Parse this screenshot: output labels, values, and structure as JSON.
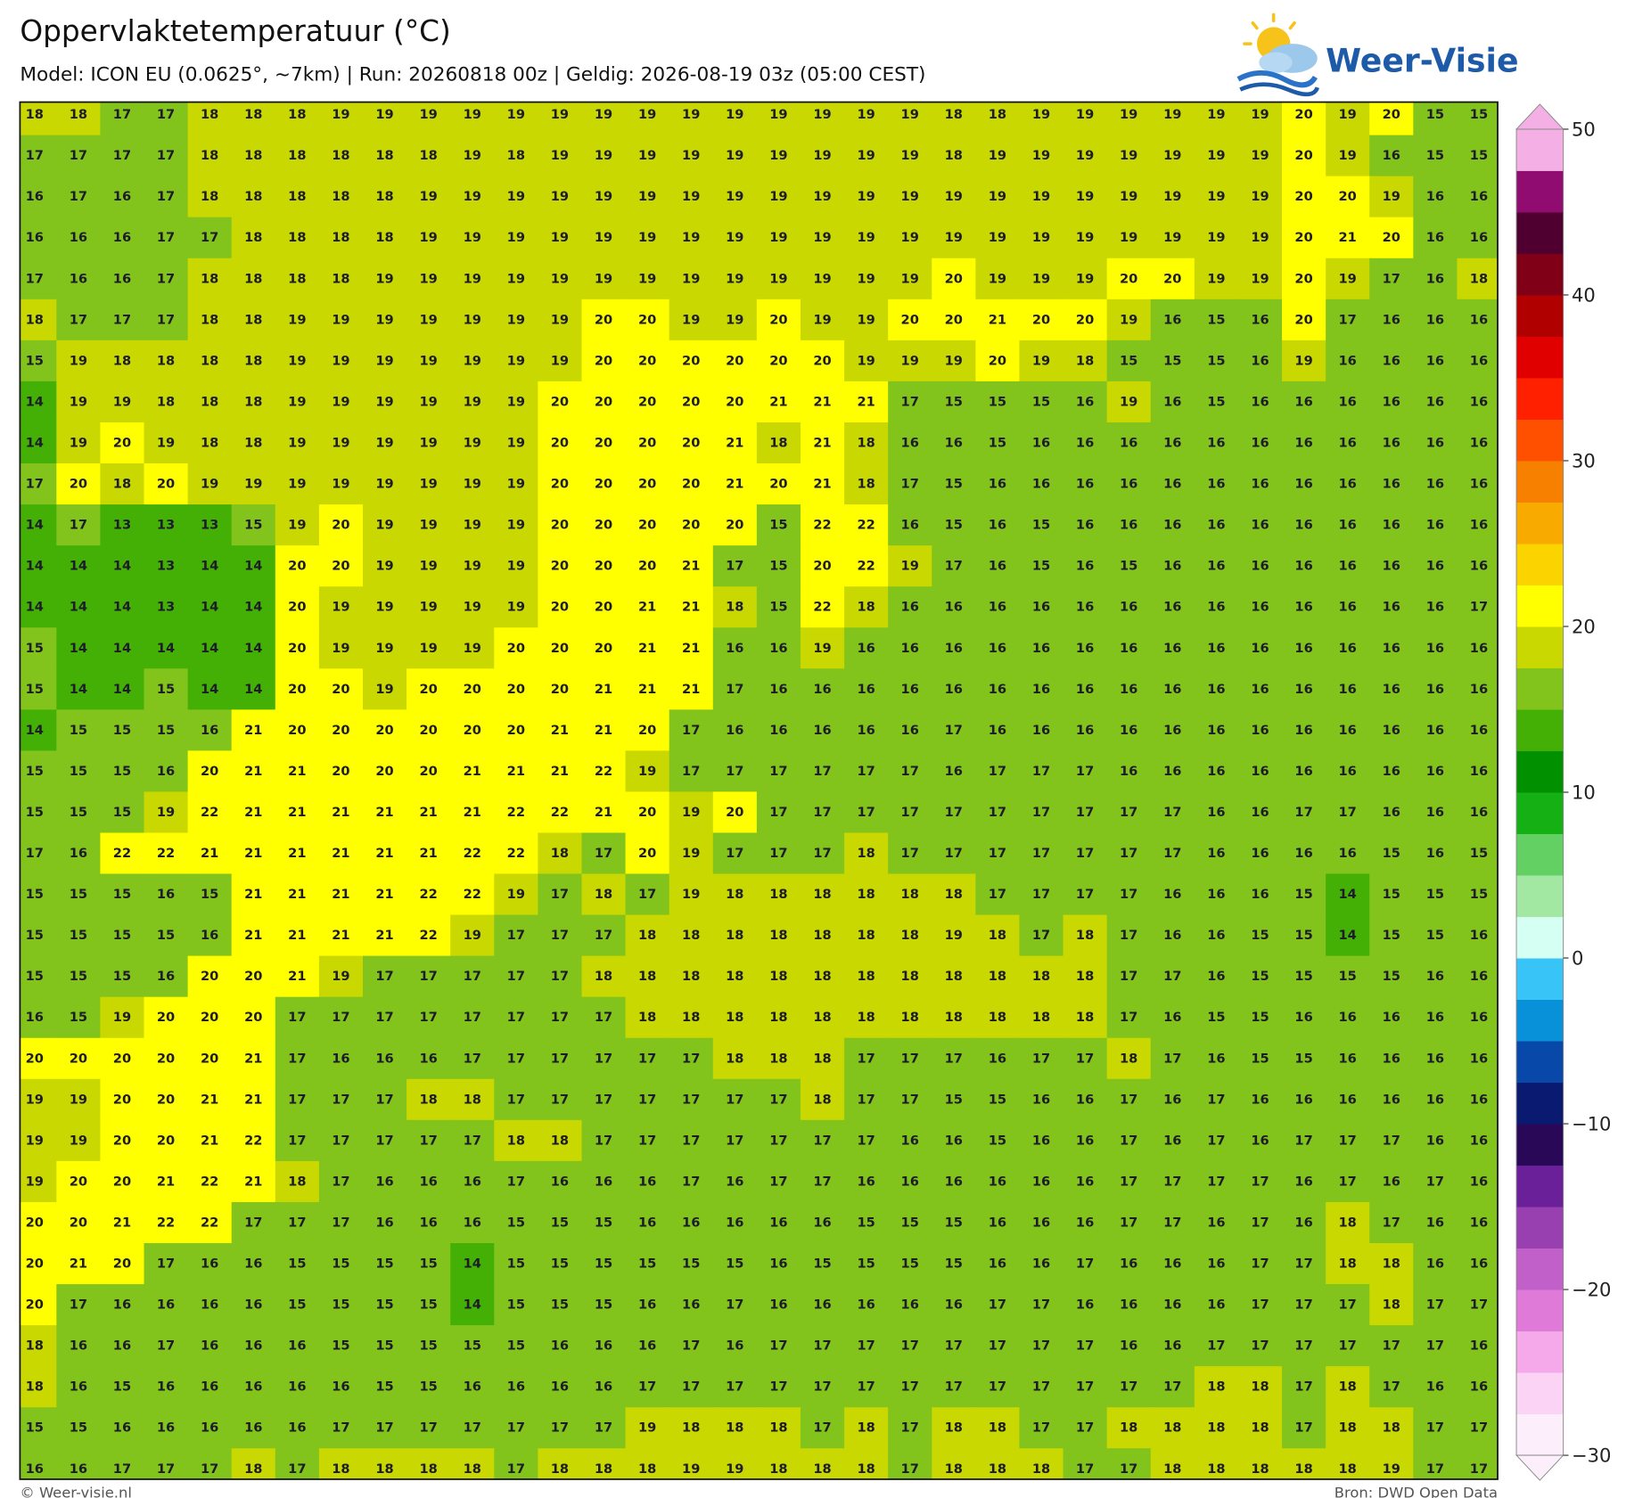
{
  "title": "Oppervlaktetemperatuur (°C)",
  "subtitle": "Model: ICON EU (0.0625°, ~7km)  |  Run: 20260818 00z  |  Geldig: 2026-08-19 03z (05:00 CEST)",
  "logo": "Weer-Visie",
  "footer_left": "© Weer-visie.nl",
  "footer_right": "Bron: DWD Open Data",
  "grid": {
    "values": [
      [
        18,
        18,
        17,
        17,
        18,
        18,
        18,
        19,
        19,
        19,
        19,
        19,
        19,
        19,
        19,
        19,
        19,
        19,
        19,
        19,
        19,
        18,
        18,
        19,
        19,
        19,
        19,
        19,
        19,
        20,
        19,
        20,
        15,
        15
      ],
      [
        17,
        17,
        17,
        17,
        18,
        18,
        18,
        18,
        18,
        18,
        19,
        18,
        19,
        19,
        19,
        19,
        19,
        19,
        19,
        19,
        19,
        18,
        19,
        19,
        19,
        19,
        19,
        19,
        19,
        20,
        19,
        16,
        15,
        15
      ],
      [
        16,
        17,
        16,
        17,
        18,
        18,
        18,
        18,
        18,
        19,
        19,
        19,
        19,
        19,
        19,
        19,
        19,
        19,
        19,
        19,
        19,
        19,
        19,
        19,
        19,
        19,
        19,
        19,
        19,
        20,
        20,
        19,
        16,
        16
      ],
      [
        16,
        16,
        16,
        17,
        17,
        18,
        18,
        18,
        18,
        19,
        19,
        19,
        19,
        19,
        19,
        19,
        19,
        19,
        19,
        19,
        19,
        19,
        19,
        19,
        19,
        19,
        19,
        19,
        19,
        20,
        21,
        20,
        16,
        16
      ],
      [
        17,
        16,
        16,
        17,
        18,
        18,
        18,
        18,
        19,
        19,
        19,
        19,
        19,
        19,
        19,
        19,
        19,
        19,
        19,
        19,
        19,
        20,
        19,
        19,
        19,
        20,
        20,
        19,
        19,
        20,
        19,
        17,
        16,
        18
      ],
      [
        18,
        17,
        17,
        17,
        18,
        18,
        19,
        19,
        19,
        19,
        19,
        19,
        19,
        20,
        20,
        19,
        19,
        20,
        19,
        19,
        20,
        20,
        21,
        20,
        20,
        19,
        16,
        15,
        16,
        20,
        17,
        16,
        16,
        16
      ],
      [
        15,
        19,
        18,
        18,
        18,
        18,
        19,
        19,
        19,
        19,
        19,
        19,
        19,
        20,
        20,
        20,
        20,
        20,
        20,
        19,
        19,
        19,
        20,
        19,
        18,
        15,
        15,
        15,
        16,
        19,
        16,
        16,
        16,
        16
      ],
      [
        14,
        19,
        19,
        18,
        18,
        18,
        19,
        19,
        19,
        19,
        19,
        19,
        20,
        20,
        20,
        20,
        20,
        21,
        21,
        21,
        17,
        15,
        15,
        15,
        16,
        19,
        16,
        15,
        16,
        16,
        16,
        16,
        16,
        16
      ],
      [
        14,
        19,
        20,
        19,
        18,
        18,
        19,
        19,
        19,
        19,
        19,
        19,
        20,
        20,
        20,
        20,
        21,
        18,
        21,
        18,
        16,
        16,
        15,
        16,
        16,
        16,
        16,
        16,
        16,
        16,
        16,
        16,
        16,
        16
      ],
      [
        17,
        20,
        18,
        20,
        19,
        19,
        19,
        19,
        19,
        19,
        19,
        19,
        20,
        20,
        20,
        20,
        21,
        20,
        21,
        18,
        17,
        15,
        16,
        16,
        16,
        16,
        16,
        16,
        16,
        16,
        16,
        16,
        16,
        16
      ],
      [
        14,
        17,
        13,
        13,
        13,
        15,
        19,
        20,
        19,
        19,
        19,
        19,
        20,
        20,
        20,
        20,
        20,
        15,
        22,
        22,
        16,
        15,
        16,
        15,
        16,
        16,
        16,
        16,
        16,
        16,
        16,
        16,
        16,
        16
      ],
      [
        14,
        14,
        14,
        13,
        14,
        14,
        20,
        20,
        19,
        19,
        19,
        19,
        20,
        20,
        20,
        21,
        17,
        15,
        20,
        22,
        19,
        17,
        16,
        15,
        16,
        15,
        16,
        16,
        16,
        16,
        16,
        16,
        16,
        16
      ],
      [
        14,
        14,
        14,
        13,
        14,
        14,
        20,
        19,
        19,
        19,
        19,
        19,
        20,
        20,
        21,
        21,
        18,
        15,
        22,
        18,
        16,
        16,
        16,
        16,
        16,
        16,
        16,
        16,
        16,
        16,
        16,
        16,
        16,
        17
      ],
      [
        15,
        14,
        14,
        14,
        14,
        14,
        20,
        19,
        19,
        19,
        19,
        20,
        20,
        20,
        21,
        21,
        16,
        16,
        19,
        16,
        16,
        16,
        16,
        16,
        16,
        16,
        16,
        16,
        16,
        16,
        16,
        16,
        16,
        16
      ],
      [
        15,
        14,
        14,
        15,
        14,
        14,
        20,
        20,
        19,
        20,
        20,
        20,
        20,
        21,
        21,
        21,
        17,
        16,
        16,
        16,
        16,
        16,
        16,
        16,
        16,
        16,
        16,
        16,
        16,
        16,
        16,
        16,
        16,
        16
      ],
      [
        14,
        15,
        15,
        15,
        16,
        21,
        20,
        20,
        20,
        20,
        20,
        20,
        21,
        21,
        20,
        17,
        16,
        16,
        16,
        16,
        16,
        17,
        16,
        16,
        16,
        16,
        16,
        16,
        16,
        16,
        16,
        16,
        16,
        16
      ],
      [
        15,
        15,
        15,
        16,
        20,
        21,
        21,
        20,
        20,
        20,
        21,
        21,
        21,
        22,
        19,
        17,
        17,
        17,
        17,
        17,
        17,
        16,
        17,
        17,
        17,
        16,
        16,
        16,
        16,
        16,
        16,
        16,
        16,
        16
      ],
      [
        15,
        15,
        15,
        19,
        22,
        21,
        21,
        21,
        21,
        21,
        21,
        22,
        22,
        21,
        20,
        19,
        20,
        17,
        17,
        17,
        17,
        17,
        17,
        17,
        17,
        17,
        17,
        16,
        16,
        17,
        17,
        16,
        16,
        16
      ],
      [
        17,
        16,
        22,
        22,
        21,
        21,
        21,
        21,
        21,
        21,
        22,
        22,
        18,
        17,
        20,
        19,
        17,
        17,
        17,
        18,
        17,
        17,
        17,
        17,
        17,
        17,
        17,
        16,
        16,
        16,
        16,
        15,
        16,
        15
      ],
      [
        15,
        15,
        15,
        16,
        15,
        21,
        21,
        21,
        21,
        22,
        22,
        19,
        17,
        18,
        17,
        19,
        18,
        18,
        18,
        18,
        18,
        18,
        17,
        17,
        17,
        17,
        16,
        16,
        16,
        15,
        14,
        15,
        15,
        15
      ],
      [
        15,
        15,
        15,
        15,
        16,
        21,
        21,
        21,
        21,
        22,
        19,
        17,
        17,
        17,
        18,
        18,
        18,
        18,
        18,
        18,
        18,
        19,
        18,
        17,
        18,
        17,
        16,
        16,
        15,
        15,
        14,
        15,
        15,
        16
      ],
      [
        15,
        15,
        15,
        16,
        20,
        20,
        21,
        19,
        17,
        17,
        17,
        17,
        17,
        18,
        18,
        18,
        18,
        18,
        18,
        18,
        18,
        18,
        18,
        18,
        18,
        17,
        17,
        16,
        15,
        15,
        15,
        15,
        16,
        16
      ],
      [
        16,
        15,
        19,
        20,
        20,
        20,
        17,
        17,
        17,
        17,
        17,
        17,
        17,
        17,
        18,
        18,
        18,
        18,
        18,
        18,
        18,
        18,
        18,
        18,
        18,
        17,
        16,
        15,
        15,
        16,
        16,
        16,
        16,
        16
      ],
      [
        20,
        20,
        20,
        20,
        20,
        21,
        17,
        16,
        16,
        16,
        17,
        17,
        17,
        17,
        17,
        17,
        18,
        18,
        18,
        17,
        17,
        17,
        16,
        17,
        17,
        18,
        17,
        16,
        15,
        15,
        16,
        16,
        16,
        16
      ],
      [
        19,
        19,
        20,
        20,
        21,
        21,
        17,
        17,
        17,
        18,
        18,
        17,
        17,
        17,
        17,
        17,
        17,
        17,
        18,
        17,
        17,
        15,
        15,
        16,
        16,
        17,
        16,
        17,
        16,
        16,
        16,
        16,
        16,
        16
      ],
      [
        19,
        19,
        20,
        20,
        21,
        22,
        17,
        17,
        17,
        17,
        17,
        18,
        18,
        17,
        17,
        17,
        17,
        17,
        17,
        17,
        16,
        16,
        15,
        16,
        16,
        17,
        16,
        17,
        16,
        17,
        17,
        17,
        16,
        16
      ],
      [
        19,
        20,
        20,
        21,
        22,
        21,
        18,
        17,
        16,
        16,
        16,
        17,
        16,
        16,
        16,
        17,
        16,
        17,
        17,
        16,
        16,
        16,
        16,
        16,
        16,
        17,
        17,
        17,
        17,
        16,
        17,
        16,
        17,
        16
      ],
      [
        20,
        20,
        21,
        22,
        22,
        17,
        17,
        17,
        16,
        16,
        16,
        15,
        15,
        15,
        16,
        16,
        16,
        16,
        16,
        15,
        15,
        15,
        16,
        16,
        16,
        17,
        17,
        16,
        17,
        16,
        18,
        17,
        16,
        16
      ],
      [
        20,
        21,
        20,
        17,
        16,
        16,
        15,
        15,
        15,
        15,
        14,
        15,
        15,
        15,
        15,
        15,
        15,
        16,
        15,
        15,
        15,
        15,
        16,
        16,
        17,
        16,
        16,
        16,
        17,
        17,
        18,
        18,
        16,
        16
      ],
      [
        20,
        17,
        16,
        16,
        16,
        16,
        15,
        15,
        15,
        15,
        14,
        15,
        15,
        15,
        16,
        16,
        17,
        16,
        16,
        16,
        16,
        16,
        17,
        17,
        16,
        16,
        16,
        16,
        17,
        17,
        17,
        18,
        17,
        17
      ],
      [
        18,
        16,
        16,
        17,
        16,
        16,
        16,
        15,
        15,
        15,
        15,
        15,
        16,
        16,
        16,
        17,
        16,
        17,
        17,
        17,
        17,
        17,
        17,
        17,
        17,
        16,
        16,
        17,
        17,
        17,
        17,
        17,
        17,
        16
      ],
      [
        18,
        16,
        15,
        16,
        16,
        16,
        16,
        16,
        15,
        15,
        16,
        16,
        16,
        16,
        17,
        17,
        17,
        17,
        17,
        17,
        17,
        17,
        17,
        17,
        17,
        17,
        17,
        18,
        18,
        17,
        18,
        17,
        16,
        16
      ],
      [
        15,
        15,
        16,
        16,
        16,
        16,
        16,
        17,
        17,
        17,
        17,
        17,
        17,
        17,
        19,
        18,
        18,
        18,
        17,
        18,
        17,
        18,
        18,
        17,
        17,
        18,
        18,
        18,
        18,
        17,
        18,
        18,
        17,
        17
      ],
      [
        16,
        16,
        17,
        17,
        17,
        18,
        17,
        18,
        18,
        18,
        18,
        17,
        18,
        18,
        18,
        19,
        19,
        18,
        18,
        18,
        17,
        18,
        18,
        18,
        17,
        17,
        18,
        18,
        18,
        18,
        18,
        19,
        17,
        17
      ]
    ]
  },
  "colorbar": {
    "lim": [
      -30,
      50
    ],
    "ticks": [
      50,
      40,
      30,
      20,
      10,
      0,
      {
        "value": -10,
        "label": "−10"
      },
      {
        "value": -20,
        "label": "−20"
      },
      {
        "value": -30,
        "label": "−30"
      }
    ],
    "colors": [
      "#fdeefb",
      "#fbd3f5",
      "#f5a8ea",
      "#e07ad8",
      "#c060c8",
      "#9840b0",
      "#6a2098",
      "#2a0858",
      "#0a1a70",
      "#0848a8",
      "#0890d8",
      "#38c4f6",
      "#d4fff2",
      "#a2e8a2",
      "#62d062",
      "#14b014",
      "#009000",
      "#44b006",
      "#82c41c",
      "#c8d800",
      "#ffff00",
      "#fbd400",
      "#f8aa00",
      "#f88000",
      "#ff5000",
      "#ff2000",
      "#e00000",
      "#b00000",
      "#800018",
      "#500030",
      "#900c70",
      "#f4b0e4"
    ]
  }
}
